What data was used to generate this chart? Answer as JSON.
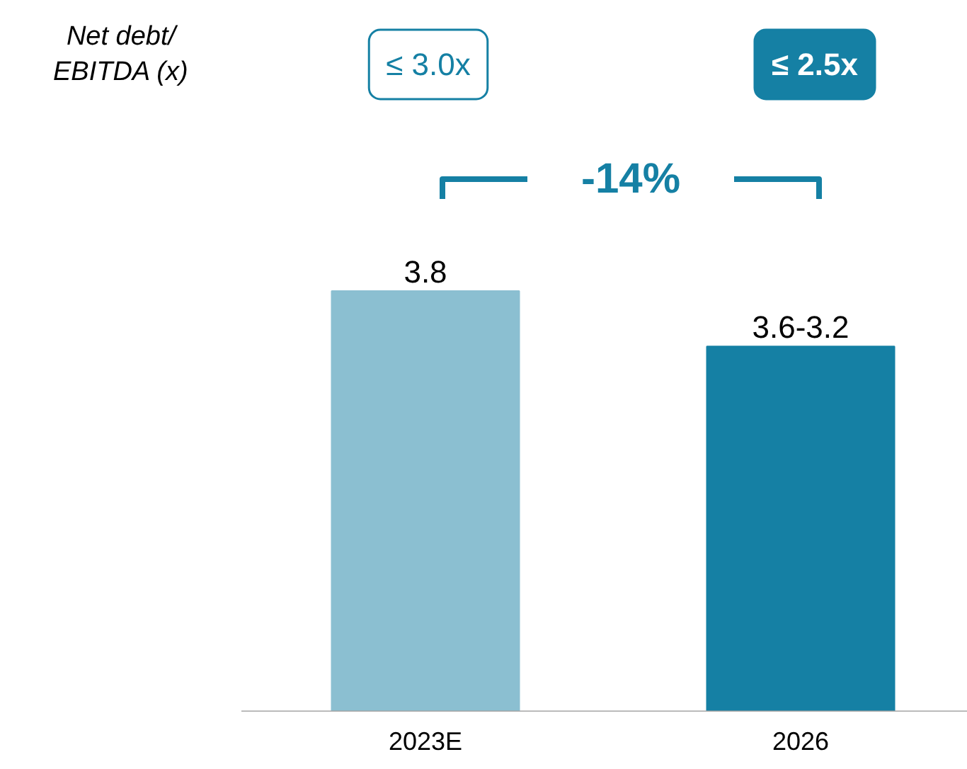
{
  "chart_data": {
    "type": "bar",
    "categories": [
      "2023E",
      "2026"
    ],
    "values": [
      3.8,
      3.3
    ],
    "colors": [
      "#8bbfd1",
      "#1580a4"
    ],
    "value_labels": [
      "3.8",
      "3.6-3.2"
    ],
    "annotations": [
      "Net debt/\nEBITDA (x)",
      "≤ 3.0x",
      "≤ 2.5x",
      "-14%"
    ]
  }
}
